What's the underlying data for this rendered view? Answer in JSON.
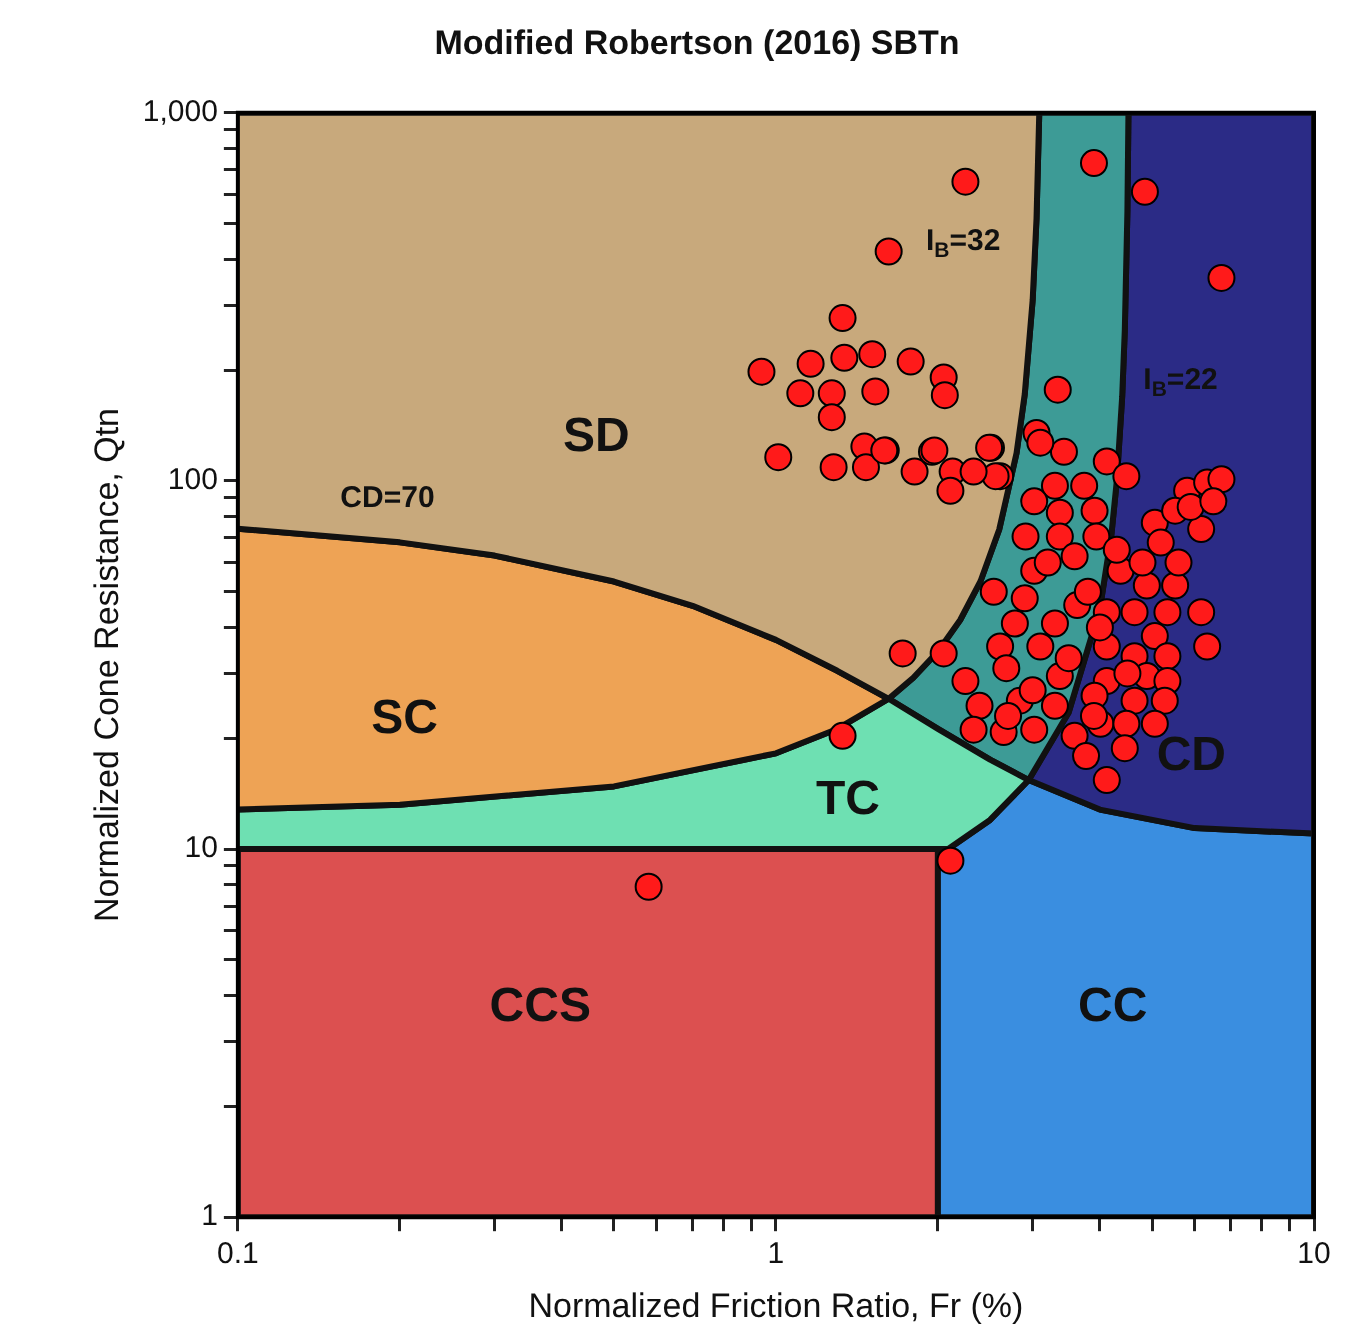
{
  "chart_data": {
    "type": "scatter",
    "title": "Modified Robertson (2016) SBTn",
    "xlabel": "Normalized Friction Ratio, Fr (%)",
    "ylabel": "Normalized Cone Resistance, Qtn",
    "log": "xy",
    "xlim": [
      0.1,
      10
    ],
    "ylim": [
      1,
      1000
    ],
    "xticks": [
      0.1,
      {
        "value": 0.2,
        "label": null
      },
      {
        "value": 0.3,
        "label": null
      },
      {
        "value": 0.4,
        "label": null
      },
      {
        "value": 0.5,
        "label": null
      },
      {
        "value": 0.6,
        "label": null
      },
      {
        "value": 0.7,
        "label": null
      },
      {
        "value": 0.8,
        "label": null
      },
      {
        "value": 0.9,
        "label": null
      },
      1,
      {
        "value": 2,
        "label": null
      },
      {
        "value": 3,
        "label": null
      },
      {
        "value": 4,
        "label": null
      },
      {
        "value": 5,
        "label": null
      },
      {
        "value": 6,
        "label": null
      },
      {
        "value": 7,
        "label": null
      },
      {
        "value": 8,
        "label": null
      },
      {
        "value": 9,
        "label": null
      },
      10
    ],
    "yticks": [
      1,
      {
        "value": 2,
        "label": null
      },
      {
        "value": 3,
        "label": null
      },
      {
        "value": 4,
        "label": null
      },
      {
        "value": 5,
        "label": null
      },
      {
        "value": 6,
        "label": null
      },
      {
        "value": 7,
        "label": null
      },
      {
        "value": 8,
        "label": null
      },
      {
        "value": 9,
        "label": null
      },
      10,
      {
        "value": 20,
        "label": null
      },
      {
        "value": 30,
        "label": null
      },
      {
        "value": 40,
        "label": null
      },
      {
        "value": 50,
        "label": null
      },
      {
        "value": 60,
        "label": null
      },
      {
        "value": 70,
        "label": null
      },
      {
        "value": 80,
        "label": null
      },
      {
        "value": 90,
        "label": null
      },
      100,
      {
        "value": 200,
        "label": null
      },
      {
        "value": 300,
        "label": null
      },
      {
        "value": 400,
        "label": null
      },
      {
        "value": 500,
        "label": null
      },
      {
        "value": 600,
        "label": null
      },
      {
        "value": 700,
        "label": null
      },
      {
        "value": 800,
        "label": null
      },
      {
        "value": 900,
        "label": null
      },
      {
        "value": 1000,
        "label": "1,000"
      }
    ],
    "grid": false,
    "legend": false,
    "series": [
      {
        "type": "area",
        "color": "#c8a97c",
        "x": [
          0.1,
          0.2,
          0.3,
          0.5,
          0.7,
          1.0,
          1.3,
          1.62,
          1.8,
          2.0,
          2.2,
          2.4,
          2.6,
          2.8,
          2.9,
          3.0,
          3.05,
          3.086,
          0.1
        ],
        "values": [
          74.2,
          68.1,
          62.7,
          53.3,
          45.8,
          37.0,
          30.5,
          25.6,
          29.2,
          34.4,
          41.9,
          53.4,
          73.8,
          119,
          172,
          310,
          517,
          1000,
          1000
        ]
      },
      {
        "type": "area",
        "color": "#eea355",
        "x": [
          0.1,
          0.2,
          0.5,
          1.0,
          1.3,
          1.62,
          1.3,
          1.0,
          0.7,
          0.5,
          0.3,
          0.2,
          0.1
        ],
        "values": [
          12.8,
          13.2,
          14.8,
          18.2,
          21.2,
          25.6,
          30.5,
          37.0,
          45.8,
          53.3,
          62.7,
          68.1,
          74.2
        ]
      },
      {
        "type": "area",
        "color": "#6ee0b2",
        "x": [
          0.1,
          2.0,
          2.09,
          2.5,
          2.95,
          2.5,
          2.0,
          1.62,
          1.3,
          1.0,
          0.5,
          0.2,
          0.1
        ],
        "values": [
          10,
          10,
          10,
          12,
          15.4,
          17.5,
          21.2,
          25.6,
          21.2,
          18.2,
          14.8,
          13.2,
          12.8
        ]
      },
      {
        "type": "area",
        "color": "#3d9b96",
        "x": [
          1.62,
          2.0,
          2.5,
          2.95,
          3.5,
          4.0,
          4.2,
          4.3,
          4.4,
          4.45,
          4.5,
          4.52,
          3.086,
          3.05,
          3.0,
          2.9,
          2.8,
          2.6,
          2.4,
          2.2,
          2.0,
          1.8,
          1.62
        ],
        "values": [
          25.6,
          21.2,
          17.5,
          15.4,
          23.5,
          45,
          71,
          100,
          169,
          257,
          540,
          1000,
          1000,
          517,
          310,
          172,
          119,
          73.8,
          53.4,
          41.9,
          34.4,
          29.2,
          25.6
        ]
      },
      {
        "type": "area",
        "color": "#2b2b86",
        "x": [
          2.95,
          4,
          6,
          10,
          10,
          4.52,
          4.5,
          4.45,
          4.4,
          4.3,
          4.2,
          4.0,
          3.5,
          2.95
        ],
        "values": [
          15.4,
          12.8,
          11.4,
          11.02,
          1000,
          1000,
          540,
          257,
          169,
          100,
          71,
          45,
          23.5,
          15.4
        ]
      },
      {
        "type": "area",
        "color": "#3a8ee0",
        "x": [
          2.0,
          10,
          10,
          6,
          4,
          2.95,
          2.5,
          2.09,
          2.0,
          2.0
        ],
        "values": [
          1,
          1,
          11.02,
          11.4,
          12.8,
          15.4,
          12,
          10,
          10,
          1
        ]
      },
      {
        "type": "area",
        "color": "#dc5050",
        "x": [
          0.1,
          2.0,
          2.0,
          0.1,
          0.1
        ],
        "values": [
          1,
          1,
          10,
          10,
          1
        ]
      },
      {
        "type": "scatter",
        "color": "#ff1a1a",
        "marker": "circle",
        "x": [
          2.25,
          3.9,
          4.85,
          6.73,
          1.62,
          1.33,
          0.94,
          1.16,
          1.34,
          1.51,
          1.78,
          2.05,
          2.06,
          1.11,
          1.27,
          1.27,
          1.53,
          3.34,
          1.28,
          1.46,
          1.6,
          1.47,
          1.81,
          1.95,
          2.13,
          2.11,
          2.51,
          2.61,
          3.05,
          3.43,
          4.12,
          4.48,
          1.01,
          1.72,
          2.05,
          1.33,
          0.58,
          2.11,
          1.59,
          1.97,
          2.49,
          2.56,
          2.33,
          3.1,
          3.3,
          3.74,
          3.02,
          3.37,
          3.91,
          2.91,
          3.37,
          3.94,
          5.06,
          5.81,
          6.33,
          6.73,
          5.19,
          6.17,
          5.52,
          2.54,
          3.02,
          3.59,
          4.37,
          4.89,
          5.52,
          6.17,
          6.33,
          2.78,
          3.3,
          3.63,
          4.12,
          4.64,
          5.34,
          5.06,
          2.61,
          3.1,
          4.12,
          4.64,
          5.34,
          2.25,
          2.68,
          3.37,
          4.12,
          4.89,
          5.34,
          2.39,
          2.84,
          3.3,
          3.91,
          4.64,
          5.28,
          2.33,
          2.65,
          3.02,
          3.59,
          4.01,
          4.48,
          5.06,
          3.77,
          4.45,
          4.12,
          3.2,
          3.8,
          4.3,
          4.0,
          3.5,
          2.9,
          4.8,
          5.6,
          3.0,
          4.5,
          2.7,
          3.9,
          5.9,
          6.5
        ],
        "values": [
          650,
          730,
          610,
          356,
          420,
          277,
          198,
          208,
          216,
          221,
          211,
          191,
          171,
          173,
          173,
          149,
          175,
          177,
          109,
          124,
          121,
          109,
          106,
          120,
          106,
          94,
          123,
          103,
          135,
          120,
          113,
          103,
          116,
          34,
          34,
          20.3,
          7.9,
          9.3,
          121,
          121,
          123,
          103,
          106,
          127,
          97,
          97,
          88,
          82,
          83,
          70.6,
          70.6,
          70.6,
          77,
          94,
          99,
          101,
          68,
          74,
          83,
          50,
          57,
          62.4,
          57,
          52,
          52,
          44,
          35.5,
          41,
          41,
          46,
          44,
          44,
          44,
          37.9,
          35.5,
          35.5,
          35.5,
          33.4,
          33.4,
          28.6,
          31,
          29.5,
          28.6,
          29.5,
          28.6,
          24.5,
          25.3,
          24.5,
          26.1,
          25.3,
          25.3,
          21.1,
          20.8,
          21.1,
          20.3,
          21.9,
          21.9,
          21.9,
          17.9,
          18.8,
          15.4,
          60,
          50,
          65,
          40,
          33,
          48,
          60,
          60,
          27,
          30,
          23,
          23,
          85,
          88
        ]
      }
    ],
    "annotations": [
      "SD",
      "SC",
      "TC",
      "CD",
      "CCS",
      "CC",
      "CD=70",
      "I$_{B}$=32",
      "I$_{B}$=22"
    ]
  }
}
